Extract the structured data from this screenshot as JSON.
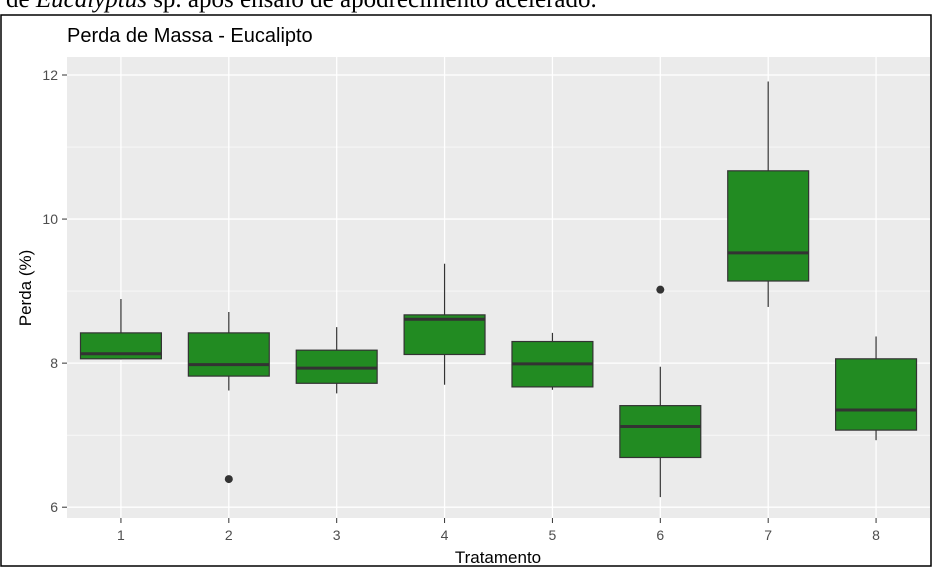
{
  "caption": {
    "prefix": "de ",
    "species": "Eucalyptus",
    "suffix": " sp. após ensaio de apodrecimento acelerado."
  },
  "colors": {
    "panel_background": "#ebebeb",
    "grid": "#ffffff",
    "box_fill": "#228b22",
    "box_line": "#333333",
    "text": "#000000",
    "tick_text": "#4d4d4d",
    "frame": "#000000"
  },
  "chart_data": {
    "type": "boxplot",
    "title": "Perda de Massa - Eucalipto",
    "xlabel": "Tratamento",
    "ylabel": "Perda (%)",
    "ylim": [
      5.85,
      12.25
    ],
    "yticks": [
      6,
      8,
      10,
      12
    ],
    "grid": true,
    "legend": "none",
    "categories": [
      "1",
      "2",
      "3",
      "4",
      "5",
      "6",
      "7",
      "8"
    ],
    "boxes": [
      {
        "category": "1",
        "whisker_low": 8.05,
        "q1": 8.06,
        "median": 8.13,
        "q3": 8.42,
        "whisker_high": 8.89,
        "outliers": []
      },
      {
        "category": "2",
        "whisker_low": 7.62,
        "q1": 7.82,
        "median": 7.98,
        "q3": 8.42,
        "whisker_high": 8.71,
        "outliers": [
          6.39
        ]
      },
      {
        "category": "3",
        "whisker_low": 7.58,
        "q1": 7.72,
        "median": 7.93,
        "q3": 8.18,
        "whisker_high": 8.5,
        "outliers": []
      },
      {
        "category": "4",
        "whisker_low": 7.7,
        "q1": 8.12,
        "median": 8.61,
        "q3": 8.67,
        "whisker_high": 9.38,
        "outliers": []
      },
      {
        "category": "5",
        "whisker_low": 7.63,
        "q1": 7.67,
        "median": 7.99,
        "q3": 8.3,
        "whisker_high": 8.42,
        "outliers": []
      },
      {
        "category": "6",
        "whisker_low": 6.14,
        "q1": 6.69,
        "median": 7.12,
        "q3": 7.41,
        "whisker_high": 7.95,
        "outliers": [
          9.02
        ]
      },
      {
        "category": "7",
        "whisker_low": 8.78,
        "q1": 9.14,
        "median": 9.53,
        "q3": 10.67,
        "whisker_high": 11.91,
        "outliers": []
      },
      {
        "category": "8",
        "whisker_low": 6.93,
        "q1": 7.07,
        "median": 7.35,
        "q3": 8.06,
        "whisker_high": 8.37,
        "outliers": []
      }
    ]
  }
}
